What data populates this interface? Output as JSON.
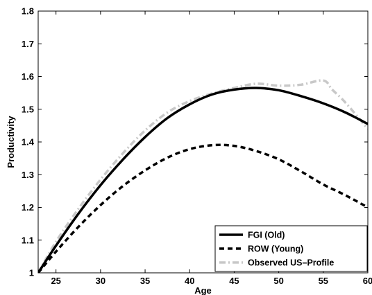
{
  "chart_data": {
    "type": "line",
    "title": "",
    "xlabel": "Age",
    "ylabel": "Productivity",
    "xlim": [
      23,
      60
    ],
    "ylim": [
      1.0,
      1.8
    ],
    "xticks": [
      25,
      30,
      35,
      40,
      45,
      50,
      55,
      60
    ],
    "yticks": [
      1,
      1.1,
      1.2,
      1.3,
      1.4,
      1.5,
      1.6,
      1.7,
      1.8
    ],
    "grid": false,
    "legend_position": "bottom-right",
    "series": [
      {
        "name": "FGI (Old)",
        "color": "#000000",
        "style": "solid",
        "x": [
          23,
          25,
          27.5,
          30,
          32.5,
          35,
          37.5,
          40,
          42.5,
          45,
          47.5,
          50,
          52.5,
          55,
          57.5,
          60
        ],
        "y": [
          1.0,
          1.083,
          1.18,
          1.268,
          1.346,
          1.415,
          1.473,
          1.515,
          1.545,
          1.56,
          1.565,
          1.558,
          1.54,
          1.518,
          1.49,
          1.455
        ]
      },
      {
        "name": "ROW (Young)",
        "color": "#000000",
        "style": "dashed",
        "x": [
          23,
          25,
          27.5,
          30,
          32.5,
          35,
          37.5,
          40,
          42.5,
          45,
          47.5,
          50,
          52.5,
          55,
          57.5,
          60
        ],
        "y": [
          1.0,
          1.065,
          1.14,
          1.207,
          1.265,
          1.313,
          1.352,
          1.378,
          1.39,
          1.388,
          1.372,
          1.347,
          1.31,
          1.27,
          1.237,
          1.2
        ]
      },
      {
        "name": "Observed US–Profile",
        "color": "#c8c8c8",
        "style": "dash-dot",
        "x": [
          23,
          25,
          27.5,
          30,
          32.5,
          35,
          37.5,
          40,
          42.5,
          45,
          47.5,
          50,
          52.5,
          55,
          56,
          57.5,
          60
        ],
        "y": [
          1.0,
          1.095,
          1.195,
          1.285,
          1.365,
          1.435,
          1.49,
          1.525,
          1.548,
          1.565,
          1.578,
          1.572,
          1.575,
          1.588,
          1.56,
          1.52,
          1.44
        ]
      }
    ]
  }
}
